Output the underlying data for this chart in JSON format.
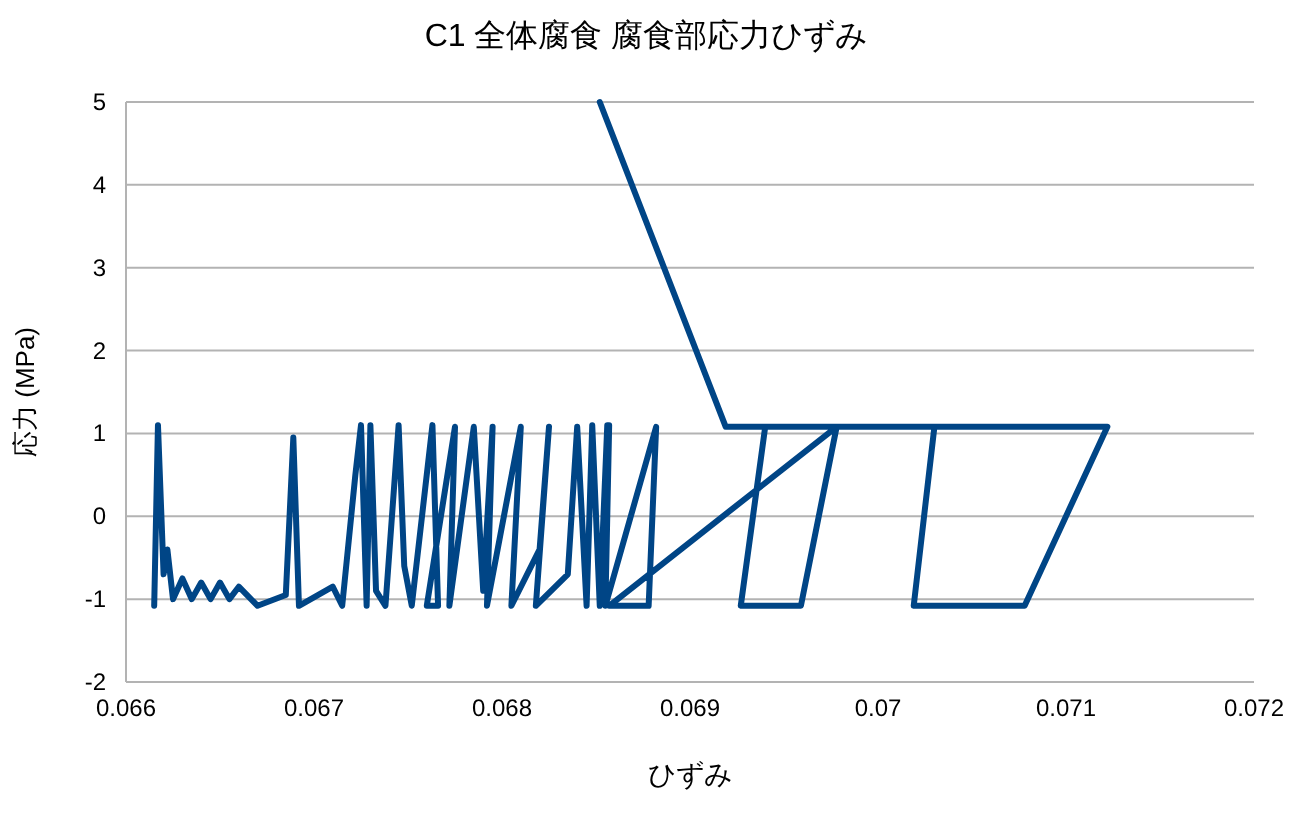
{
  "chart_data": {
    "type": "line",
    "title": "C1  全体腐食 腐食部応力ひずみ",
    "xlabel": "ひずみ",
    "ylabel": "応力 (MPa)",
    "x": [
      0.06615,
      0.06617,
      0.0662,
      0.06622,
      0.06625,
      0.0663,
      0.06635,
      0.0664,
      0.06645,
      0.0665,
      0.06655,
      0.0666,
      0.0667,
      0.06685,
      0.06689,
      0.06692,
      0.0671,
      0.06715,
      0.06722,
      0.06725,
      0.06728,
      0.0673,
      0.06733,
      0.06738,
      0.06745,
      0.06748,
      0.06752,
      0.06763,
      0.06766,
      0.0676,
      0.06775,
      0.06772,
      0.06785,
      0.0679,
      0.06795,
      0.06792,
      0.0681,
      0.06805,
      0.0682,
      0.06825,
      0.06818,
      0.06835,
      0.0684,
      0.06845,
      0.06848,
      0.06852,
      0.06856,
      0.06857,
      0.06855,
      0.06882,
      0.06878,
      0.06857,
      0.06978,
      0.0694,
      0.06927,
      0.06959,
      0.06978,
      0.0703,
      0.07019,
      0.07078,
      0.07122,
      0.06919,
      0.06852
    ],
    "values": [
      -1.08,
      1.1,
      -0.7,
      -0.4,
      -1.0,
      -0.75,
      -1.0,
      -0.8,
      -1.0,
      -0.8,
      -1.0,
      -0.85,
      -1.08,
      -0.95,
      0.95,
      -1.08,
      -0.85,
      -1.08,
      0.5,
      1.1,
      -1.08,
      1.1,
      -0.9,
      -1.08,
      1.1,
      -0.6,
      -1.08,
      1.1,
      -1.08,
      -1.08,
      1.08,
      -1.08,
      1.08,
      -0.9,
      1.08,
      -1.08,
      1.08,
      -1.08,
      -0.4,
      1.08,
      -1.08,
      -0.7,
      1.08,
      -1.08,
      1.1,
      -1.08,
      1.1,
      1.1,
      -1.08,
      1.08,
      -1.08,
      -1.08,
      1.08,
      1.08,
      -1.08,
      -1.08,
      1.08,
      1.08,
      -1.08,
      -1.08,
      1.08,
      1.08,
      5
    ],
    "color": "#004586",
    "xlim": [
      0.066,
      0.072
    ],
    "xticks": [
      0.066,
      0.067,
      0.068,
      0.069,
      0.07,
      0.071,
      0.072
    ],
    "ylim": [
      -2,
      5
    ],
    "yticks": [
      -2,
      -1,
      0,
      1,
      2,
      3,
      4,
      5
    ],
    "grid": "y"
  }
}
